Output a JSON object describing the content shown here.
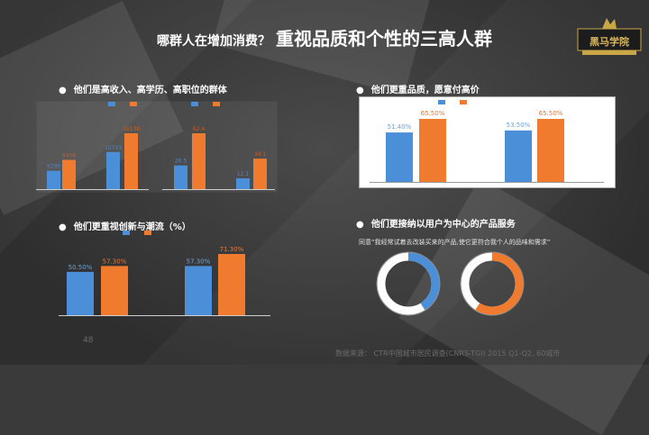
{
  "title": {
    "prefix": "哪群人在增加消费？",
    "main": "重视品质和个性的三高人群"
  },
  "logo": {
    "text": "黑马学院"
  },
  "sections": {
    "s1": {
      "bullet": "●",
      "heading": "他们是高收入、高学历、高职位的群体"
    },
    "s2": {
      "bullet": "●",
      "heading": "他们更重品质，愿意付高价"
    },
    "s3": {
      "bullet": "●",
      "heading": "他们更重视创新与潮流（%）"
    },
    "s4": {
      "bullet": "●",
      "heading": "他们更接纳以用户为中心的产品服务"
    }
  },
  "s4_note": "同意“我经常试着去改装买来的产品,使它更符合我个人的品味和需求”",
  "page_number": "48",
  "source": "数据来源：  CTR中国城市居民调查(CNRS-TGI) 2015 Q1-Q2, 60城市",
  "colors": {
    "blue": "#4a8fd8",
    "orange": "#f07a2e",
    "gray_bg": "#3a3a3a"
  },
  "chart_data": [
    {
      "type": "bar",
      "title": "他们是高收入、高学历、高职位的群体",
      "groups": [
        {
          "values": [
            5290,
            8458
          ]
        },
        {
          "values": [
            10733,
            16138
          ]
        },
        {
          "values": [
            26.5,
            62.4
          ]
        },
        {
          "values": [
            12.1,
            34.1
          ]
        }
      ],
      "value_labels": [
        [
          "5290",
          "8458"
        ],
        [
          "10733",
          "16138"
        ],
        [
          "26.5",
          "62.4"
        ],
        [
          "12.1",
          "34.1"
        ]
      ]
    },
    {
      "type": "bar",
      "title": "他们更重品质，愿意付高价",
      "groups": [
        {
          "values": [
            51.4,
            65.5
          ]
        },
        {
          "values": [
            53.5,
            65.5
          ]
        }
      ],
      "value_labels": [
        [
          "51.40%",
          "65.50%"
        ],
        [
          "53.50%",
          "65.50%"
        ]
      ]
    },
    {
      "type": "bar",
      "title": "他们更重视创新与潮流（%）",
      "groups": [
        {
          "values": [
            50.5,
            57.3
          ]
        },
        {
          "values": [
            57.3,
            71.3
          ]
        }
      ],
      "value_labels": [
        [
          "50.50%",
          "57.30%"
        ],
        [
          "57.30%",
          "71.30%"
        ]
      ]
    },
    {
      "type": "pie",
      "title": "他们更接纳以用户为中心的产品服务",
      "donuts": [
        {
          "color": "blue",
          "fraction": 0.41
        },
        {
          "color": "orange",
          "fraction": 0.59
        }
      ]
    }
  ]
}
